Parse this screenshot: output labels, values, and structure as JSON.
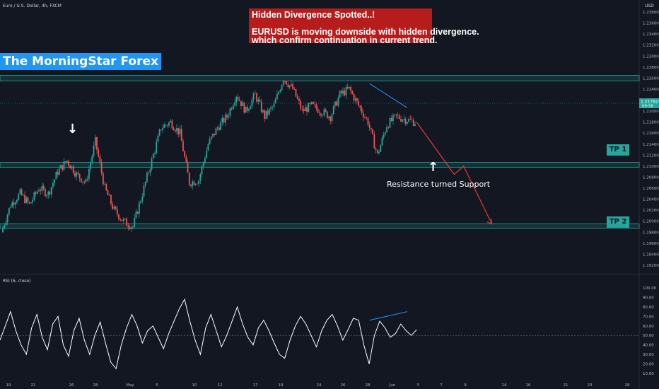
{
  "header": {
    "symbol_label": "Euro / U.S. Dollar, 4h, FXCM",
    "currency": "USD"
  },
  "brand_banner": "The MorningStar Forex",
  "callout": {
    "title": "Hidden Divergence Spotted..!",
    "line1": "EURUSD is moving downside with hidden divergence.",
    "line2": "which confirm continuation in current trend."
  },
  "annotations": {
    "support_text": "Resistance turned Support",
    "tp1": "TP 1",
    "tp2": "TP 2"
  },
  "last_price": {
    "value": "1.21792",
    "timer": "09:56"
  },
  "indicator": {
    "label": "RSI (6, close)"
  },
  "colors": {
    "background": "#131722",
    "up": "#26a69a",
    "down": "#ef5350",
    "zone": "#26a69a",
    "projection": "#e53935",
    "divergence": "#2196f3",
    "banner": "#2196f3",
    "callout": "#b71c1c"
  },
  "chart_data": [
    {
      "type": "candlestick",
      "title": "Euro / U.S. Dollar, 4h, FXCM",
      "ylabel": "USD",
      "ylim": [
        1.19,
        1.24
      ],
      "y_ticks": [
        "1.23800",
        "1.23600",
        "1.23400",
        "1.23200",
        "1.23000",
        "1.22800",
        "1.22600",
        "1.22400",
        "1.22200",
        "1.22000",
        "1.21800",
        "1.21600",
        "1.21400",
        "1.21200",
        "1.21000",
        "1.20800",
        "1.20600",
        "1.20400",
        "1.20200",
        "1.20000",
        "1.19800",
        "1.19600",
        "1.19400",
        "1.19200"
      ],
      "x_ticks": [
        "19",
        "21",
        "26",
        "28",
        "May",
        "5",
        "10",
        "12",
        "17",
        "19",
        "24",
        "26",
        "28",
        "Jun",
        "3",
        "7",
        "9",
        "14",
        "16",
        "21",
        "23",
        "28"
      ],
      "zones": [
        {
          "name": "Top resistance zone",
          "from": 1.2255,
          "to": 1.2265
        },
        {
          "name": "TP 1",
          "from": 1.2098,
          "to": 1.2107
        },
        {
          "name": "TP 2",
          "from": 1.1987,
          "to": 1.1995
        }
      ],
      "price_path": [
        [
          19,
          1.198
        ],
        [
          20,
          1.203
        ],
        [
          21,
          1.205
        ],
        [
          22,
          1.203
        ],
        [
          23,
          1.206
        ],
        [
          24,
          1.205
        ],
        [
          25,
          1.209
        ],
        [
          26,
          1.211
        ],
        [
          27,
          1.2085
        ],
        [
          28,
          1.207
        ],
        [
          29,
          1.2145
        ],
        [
          30,
          1.206
        ],
        [
          31,
          1.202
        ],
        [
          32,
          1.2
        ],
        [
          33,
          1.199
        ],
        [
          34,
          1.205
        ],
        [
          35,
          1.211
        ],
        [
          36,
          1.217
        ],
        [
          37,
          1.218
        ],
        [
          38,
          1.216
        ],
        [
          39,
          1.207
        ],
        [
          40,
          1.2075
        ],
        [
          41,
          1.214
        ],
        [
          42,
          1.217
        ],
        [
          43,
          1.219
        ],
        [
          44,
          1.223
        ],
        [
          45,
          1.22
        ],
        [
          46,
          1.223
        ],
        [
          47,
          1.219
        ],
        [
          48,
          1.221
        ],
        [
          49,
          1.226
        ],
        [
          50,
          1.224
        ],
        [
          51,
          1.22
        ],
        [
          52,
          1.221
        ],
        [
          53,
          1.22
        ],
        [
          54,
          1.219
        ],
        [
          55,
          1.223
        ],
        [
          56,
          1.224
        ],
        [
          57,
          1.221
        ],
        [
          58,
          1.218
        ],
        [
          59,
          1.212
        ],
        [
          60,
          1.2175
        ],
        [
          61,
          1.219
        ],
        [
          62,
          1.2185
        ],
        [
          63,
          1.218
        ]
      ],
      "projection": [
        [
          63,
          1.218
        ],
        [
          67,
          1.2085
        ],
        [
          68,
          1.21
        ],
        [
          71,
          1.1995
        ]
      ],
      "divergence_line_price": [
        [
          58,
          1.225
        ],
        [
          62,
          1.2206
        ]
      ]
    },
    {
      "type": "line",
      "title": "RSI (6, close)",
      "ylim": [
        0,
        100
      ],
      "y_ticks": [
        "100.00",
        "90.00",
        "80.00",
        "70.00",
        "60.00",
        "50.00",
        "40.00",
        "30.00",
        "20.00",
        "10.00"
      ],
      "reference_level": 50,
      "values": [
        45,
        60,
        75,
        55,
        40,
        30,
        58,
        72,
        48,
        35,
        62,
        70,
        40,
        28,
        55,
        68,
        45,
        30,
        50,
        64,
        42,
        22,
        15,
        40,
        58,
        72,
        60,
        42,
        55,
        60,
        48,
        36,
        52,
        65,
        78,
        88,
        65,
        45,
        30,
        58,
        72,
        55,
        38,
        50,
        65,
        80,
        62,
        48,
        40,
        58,
        66,
        55,
        42,
        30,
        26,
        45,
        60,
        70,
        62,
        50,
        38,
        55,
        66,
        72,
        60,
        45,
        56,
        68,
        66,
        40,
        20,
        50,
        65,
        58,
        48,
        52,
        62,
        55,
        50,
        56
      ],
      "divergence_line_rsi": [
        [
          58,
          66
        ],
        [
          62,
          75
        ]
      ]
    }
  ]
}
